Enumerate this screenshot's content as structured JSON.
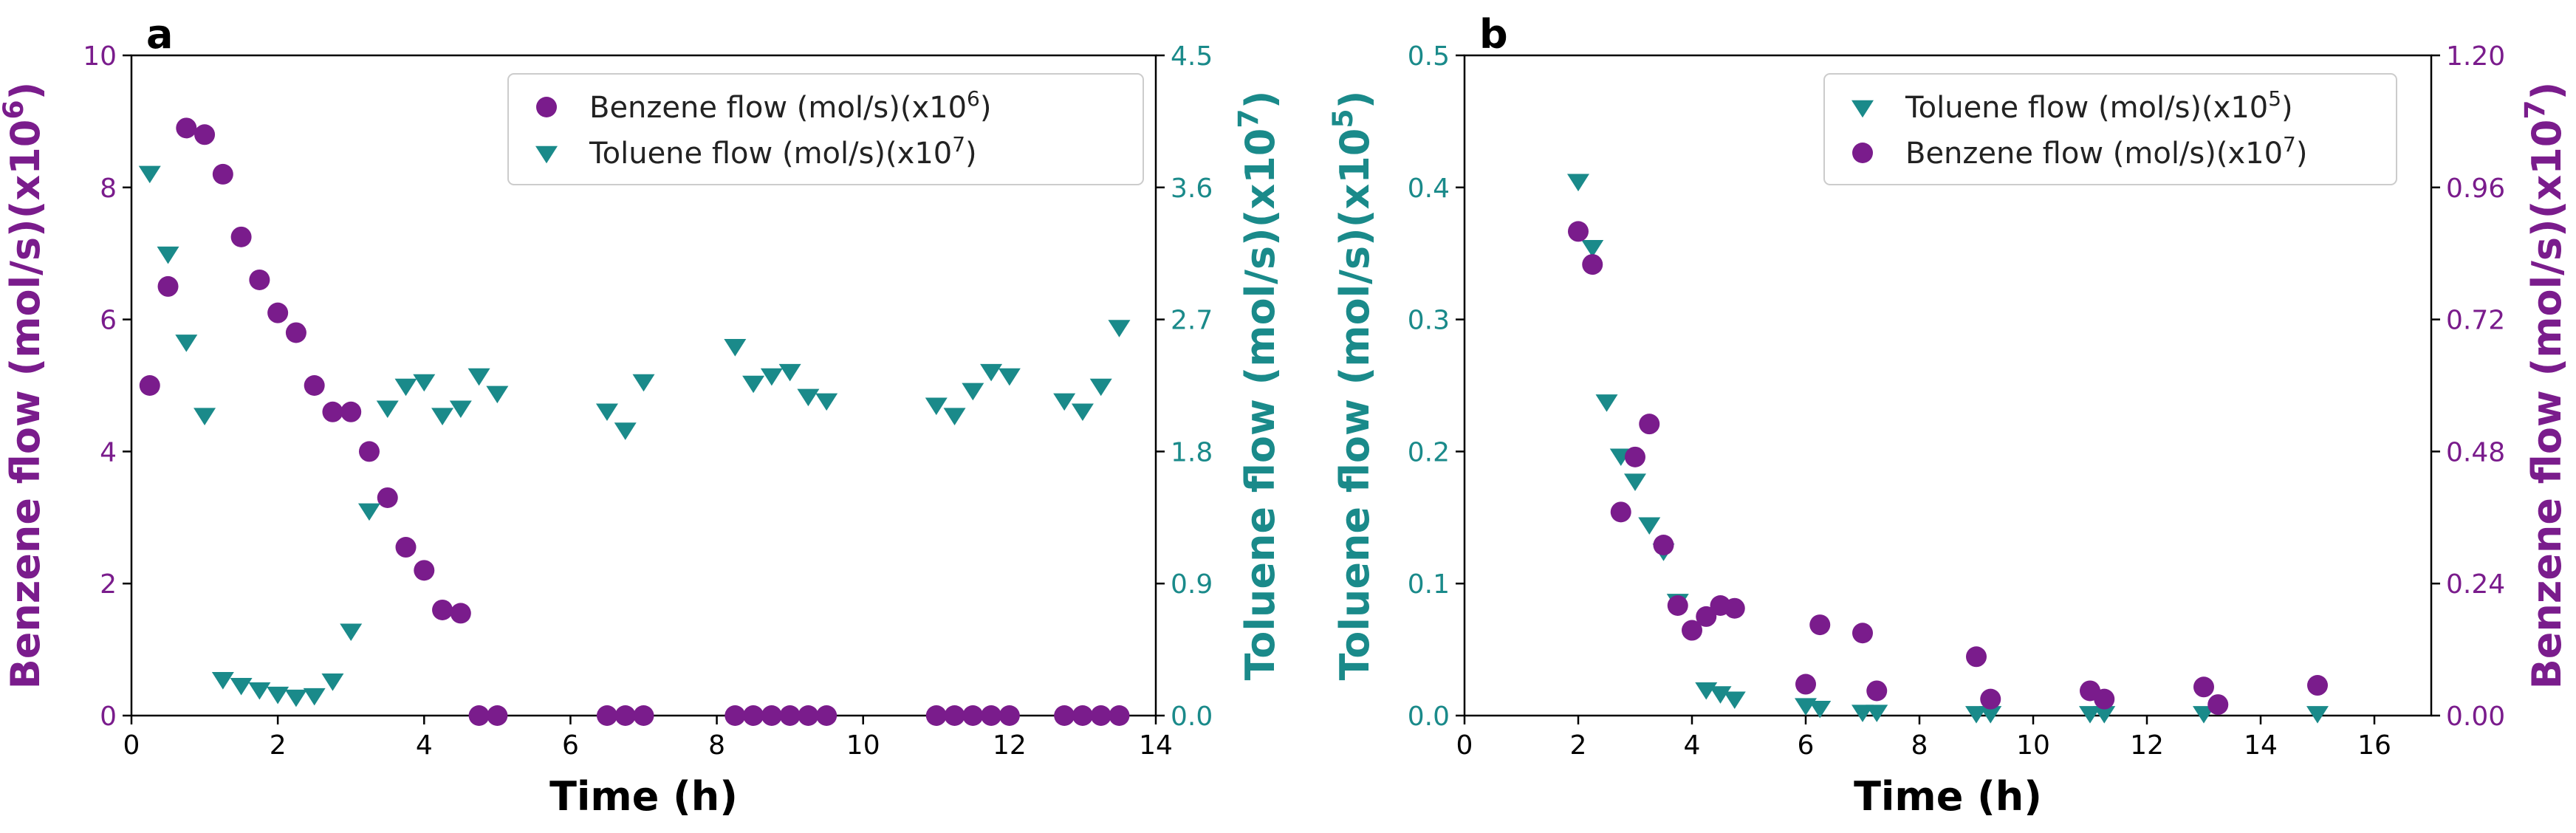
{
  "colors": {
    "benzene": "#7a1c8c",
    "toluene": "#1a8a8a",
    "axis": "#000000",
    "legend_border": "#cccccc"
  },
  "chart_data": [
    {
      "panel": "a",
      "type": "scatter",
      "xlabel": "Time (h)",
      "xlim": [
        0,
        14
      ],
      "xticks": [
        0,
        2,
        4,
        6,
        8,
        10,
        12,
        14
      ],
      "left_axis": {
        "label": "Benzene flow (mol/s)(x10",
        "label_sup": "6",
        "label_end": ")",
        "lim": [
          0,
          10
        ],
        "ticks": [
          "0",
          "2",
          "4",
          "6",
          "8",
          "10"
        ],
        "color_key": "benzene"
      },
      "right_axis": {
        "label": "Toluene flow (mol/s)(x10",
        "label_sup": "7",
        "label_end": ")",
        "lim": [
          0,
          4.5
        ],
        "ticks": [
          "0.0",
          "0.9",
          "1.8",
          "2.7",
          "3.6",
          "4.5"
        ],
        "color_key": "toluene"
      },
      "legend_position": "top-right",
      "series": [
        {
          "name": "Benzene flow (mol/s)(x10",
          "name_sup": "6",
          "name_end": ")",
          "axis": "left",
          "marker": "circle",
          "color_key": "benzene",
          "x": [
            0.25,
            0.5,
            0.75,
            1.0,
            1.25,
            1.5,
            1.75,
            2.0,
            2.25,
            2.5,
            2.75,
            3.0,
            3.25,
            3.5,
            3.75,
            4.0,
            4.25,
            4.5,
            4.75,
            5.0,
            6.5,
            6.75,
            7.0,
            8.25,
            8.5,
            8.75,
            9.0,
            9.25,
            9.5,
            11.0,
            11.25,
            11.5,
            11.75,
            12.0,
            12.75,
            13.0,
            13.25,
            13.5
          ],
          "y": [
            5.0,
            6.5,
            8.9,
            8.8,
            8.2,
            7.25,
            6.6,
            6.1,
            5.8,
            5.0,
            4.6,
            4.6,
            4.0,
            3.3,
            2.55,
            2.2,
            1.6,
            1.55,
            0,
            0,
            0,
            0,
            0,
            0,
            0,
            0,
            0,
            0,
            0,
            0,
            0,
            0,
            0,
            0,
            0,
            0,
            0,
            0
          ]
        },
        {
          "name": "Toluene flow (mol/s)(x10",
          "name_sup": "7",
          "name_end": ")",
          "axis": "right",
          "marker": "triangle-down",
          "color_key": "toluene",
          "x": [
            0.25,
            0.5,
            0.75,
            1.0,
            1.25,
            1.5,
            1.75,
            2.0,
            2.25,
            2.5,
            2.75,
            3.0,
            3.25,
            3.5,
            3.75,
            4.0,
            4.25,
            4.5,
            4.75,
            5.0,
            6.5,
            6.75,
            7.0,
            8.25,
            8.5,
            8.75,
            9.0,
            9.25,
            9.5,
            11.0,
            11.25,
            11.5,
            11.75,
            12.0,
            12.75,
            13.0,
            13.25,
            13.5
          ],
          "y": [
            3.7,
            3.15,
            2.55,
            2.05,
            0.25,
            0.21,
            0.18,
            0.15,
            0.13,
            0.14,
            0.24,
            0.58,
            1.4,
            2.1,
            2.25,
            2.28,
            2.05,
            2.1,
            2.32,
            2.2,
            2.08,
            1.95,
            2.28,
            2.52,
            2.27,
            2.32,
            2.35,
            2.18,
            2.15,
            2.12,
            2.05,
            2.22,
            2.35,
            2.32,
            2.15,
            2.08,
            2.25,
            2.65
          ]
        }
      ]
    },
    {
      "panel": "b",
      "type": "scatter",
      "xlabel": "Time (h)",
      "xlim": [
        0,
        17
      ],
      "xticks": [
        0,
        2,
        4,
        6,
        8,
        10,
        12,
        14,
        16
      ],
      "left_axis": {
        "label": "Toluene flow (mol/s)(x10",
        "label_sup": "5",
        "label_end": ")",
        "lim": [
          0,
          0.5
        ],
        "ticks": [
          "0.0",
          "0.1",
          "0.2",
          "0.3",
          "0.4",
          "0.5"
        ],
        "color_key": "toluene"
      },
      "right_axis": {
        "label": "Benzene flow (mol/s)(x10",
        "label_sup": "7",
        "label_end": ")",
        "lim": [
          0,
          1.2
        ],
        "ticks": [
          "0.00",
          "0.24",
          "0.48",
          "0.72",
          "0.96",
          "1.20"
        ],
        "color_key": "benzene"
      },
      "legend_position": "top-right",
      "series": [
        {
          "name": "Toluene flow (mol/s)(x10",
          "name_sup": "5",
          "name_end": ")",
          "axis": "left",
          "marker": "triangle-down",
          "color_key": "toluene",
          "x": [
            2.0,
            2.25,
            2.5,
            2.75,
            3.0,
            3.25,
            3.5,
            3.75,
            4.25,
            4.5,
            4.75,
            6.0,
            6.25,
            7.0,
            7.25,
            9.0,
            9.25,
            11.0,
            11.25,
            13.0,
            15.0
          ],
          "y": [
            0.405,
            0.355,
            0.238,
            0.197,
            0.178,
            0.145,
            0.125,
            0.087,
            0.02,
            0.017,
            0.013,
            0.008,
            0.006,
            0.003,
            0.003,
            0.002,
            0.002,
            0.002,
            0.002,
            0.002,
            0.002
          ]
        },
        {
          "name": "Benzene flow (mol/s)(x10",
          "name_sup": "7",
          "name_end": ")",
          "axis": "right",
          "marker": "circle",
          "color_key": "benzene",
          "x": [
            2.0,
            2.25,
            2.75,
            3.0,
            3.25,
            3.5,
            3.75,
            4.0,
            4.25,
            4.5,
            4.75,
            6.0,
            6.25,
            7.0,
            7.25,
            9.0,
            9.25,
            11.0,
            11.25,
            13.0,
            13.25,
            15.0
          ],
          "y": [
            0.88,
            0.82,
            0.37,
            0.47,
            0.53,
            0.31,
            0.2,
            0.155,
            0.18,
            0.2,
            0.195,
            0.057,
            0.165,
            0.15,
            0.045,
            0.107,
            0.03,
            0.045,
            0.03,
            0.052,
            0.02,
            0.055
          ]
        }
      ]
    }
  ]
}
